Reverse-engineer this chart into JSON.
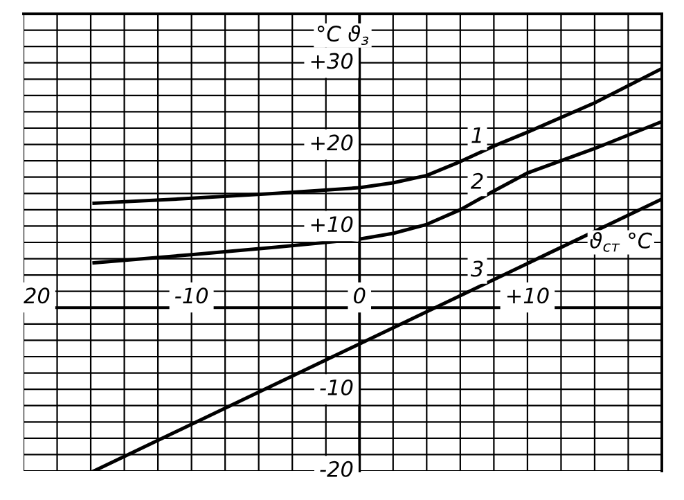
{
  "chart_data": {
    "type": "line",
    "xlabel": "ϑ$_{ст}$ °C",
    "ylabel": "°C ϑ$_{з}$",
    "series": [
      {
        "name": "1",
        "color": "#000000",
        "x": [
          -15.8,
          -10,
          -5,
          0,
          2,
          4,
          6,
          8,
          10,
          14,
          18
        ],
        "values": [
          12.8,
          13.4,
          14.0,
          14.7,
          15.3,
          16.2,
          17.9,
          19.8,
          21.5,
          25.1,
          29.3
        ]
      },
      {
        "name": "2",
        "color": "#000000",
        "x": [
          -15.8,
          -10,
          -5,
          0,
          2,
          4,
          6,
          8,
          10,
          14,
          18
        ],
        "values": [
          5.5,
          6.5,
          7.4,
          8.4,
          9.1,
          10.2,
          12.0,
          14.3,
          16.5,
          19.5,
          22.8
        ]
      },
      {
        "name": "3",
        "color": "#000000",
        "x": [
          -15.8,
          18
        ],
        "values": [
          -20,
          13.3
        ]
      }
    ],
    "xlim": [
      -20,
      18
    ],
    "ylim": [
      -20,
      36
    ],
    "xticks": [
      {
        "value": -20,
        "label": "20"
      },
      {
        "value": -18,
        "label": null
      },
      {
        "value": -16,
        "label": null
      },
      {
        "value": -14,
        "label": null
      },
      {
        "value": -12,
        "label": null
      },
      {
        "value": -10,
        "label": "-10"
      },
      {
        "value": -8,
        "label": null
      },
      {
        "value": -6,
        "label": null
      },
      {
        "value": -4,
        "label": null
      },
      {
        "value": -2,
        "label": null
      },
      0,
      {
        "value": 2,
        "label": null
      },
      {
        "value": 4,
        "label": null
      },
      {
        "value": 6,
        "label": null
      },
      {
        "value": 8,
        "label": null
      },
      {
        "value": 10,
        "label": "+10"
      },
      {
        "value": 12,
        "label": null
      },
      {
        "value": 14,
        "label": null
      },
      {
        "value": 16,
        "label": null
      },
      {
        "value": 18,
        "label": null
      }
    ],
    "yticks": [
      {
        "value": -20,
        "label": "-20"
      },
      {
        "value": -18,
        "label": null
      },
      {
        "value": -16,
        "label": null
      },
      {
        "value": -14,
        "label": null
      },
      {
        "value": -12,
        "label": null
      },
      {
        "value": -10,
        "label": "-10"
      },
      {
        "value": -8,
        "label": null
      },
      {
        "value": -6,
        "label": null
      },
      {
        "value": -4,
        "label": null
      },
      {
        "value": -2,
        "label": null
      },
      {
        "value": 0,
        "label": null
      },
      {
        "value": 2,
        "label": null
      },
      {
        "value": 4,
        "label": null
      },
      {
        "value": 6,
        "label": null
      },
      {
        "value": 8,
        "label": null
      },
      {
        "value": 10,
        "label": "+10"
      },
      {
        "value": 12,
        "label": null
      },
      {
        "value": 14,
        "label": null
      },
      {
        "value": 16,
        "label": null
      },
      {
        "value": 18,
        "label": null
      },
      {
        "value": 20,
        "label": "+20"
      },
      {
        "value": 22,
        "label": null
      },
      {
        "value": 24,
        "label": null
      },
      {
        "value": 26,
        "label": null
      },
      {
        "value": 28,
        "label": null
      },
      {
        "value": 30,
        "label": "+30"
      },
      {
        "value": 32,
        "label": null
      },
      {
        "value": 34,
        "label": null
      },
      {
        "value": 36,
        "label": null
      }
    ],
    "grid": true,
    "line_style": "solid",
    "marker": "none"
  }
}
